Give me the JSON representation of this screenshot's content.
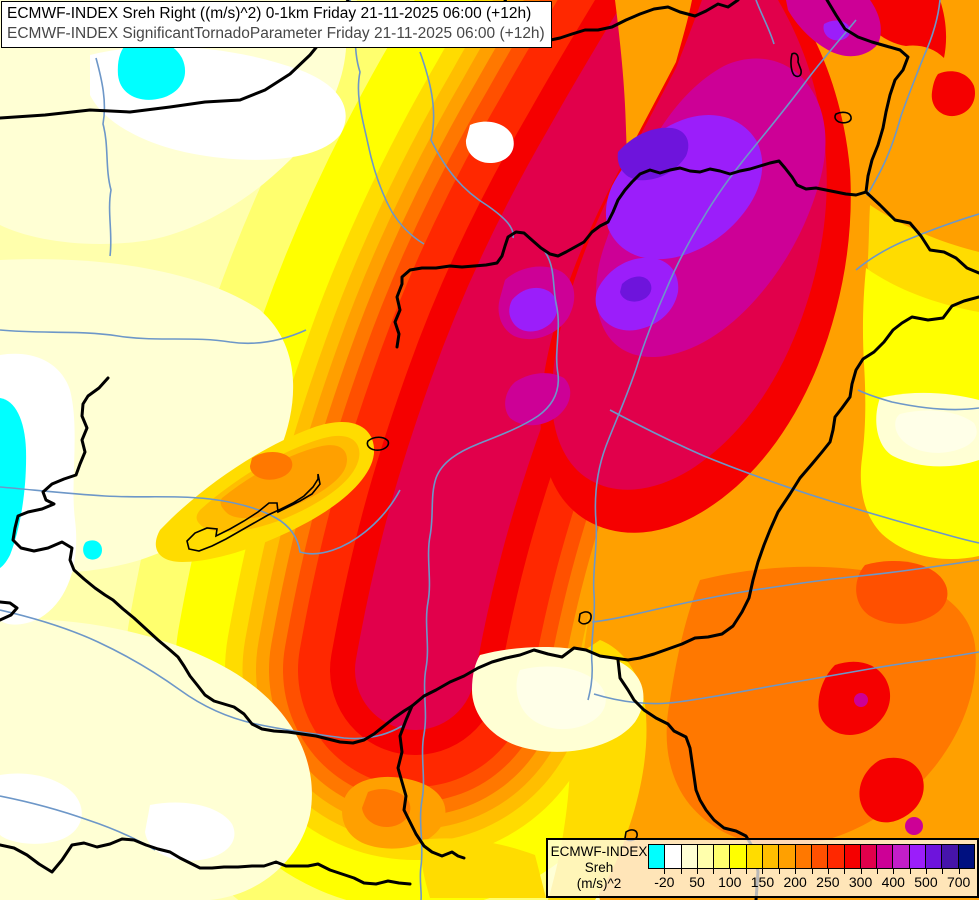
{
  "header": {
    "line1": "ECMWF-INDEX Sreh Right ((m/s)^2) 0-1km Friday 21-11-2025 06:00 (+12h)",
    "line2": "ECMWF-INDEX SignificantTornadoParameter Friday 21-11-2025 06:00 (+12h)"
  },
  "legend": {
    "product": "ECMWF-INDEX",
    "parameter": "Sreh",
    "units": "(m/s)^2",
    "scale_colors": [
      "#00FFFF",
      "#FFFFFF",
      "#FFFFD4",
      "#FFFFAC",
      "#FFFF6E",
      "#FFFF00",
      "#FFDC00",
      "#FFBE00",
      "#FFA000",
      "#FF7800",
      "#FF5000",
      "#FF2800",
      "#F50000",
      "#E1004B",
      "#CD0096",
      "#C31EC8",
      "#9B1EFA",
      "#6E14DC",
      "#4614AA",
      "#001080"
    ],
    "ticks": [
      {
        "label": "-20",
        "boundary": 1
      },
      {
        "label": "50",
        "boundary": 3
      },
      {
        "label": "100",
        "boundary": 5
      },
      {
        "label": "150",
        "boundary": 7
      },
      {
        "label": "200",
        "boundary": 9
      },
      {
        "label": "250",
        "boundary": 11
      },
      {
        "label": "300",
        "boundary": 13
      },
      {
        "label": "400",
        "boundary": 15
      },
      {
        "label": "500",
        "boundary": 17
      },
      {
        "label": "700",
        "boundary": 19
      }
    ]
  },
  "map": {
    "palette": {
      "base": "#FFFFAC",
      "cream": "#FFFFD4",
      "white": "#FFFFFF",
      "near_white": "#FFFFE8",
      "cyan": "#00FFFF",
      "light_yellow": "#FFFF6E",
      "yellow": "#FFFF00",
      "gold": "#FFDC00",
      "amber": "#FFBE00",
      "orange": "#FFA000",
      "deep_orange": "#FF7800",
      "orange_red": "#FF5000",
      "red_orange": "#FF2800",
      "red": "#F50000",
      "crimson": "#E1004B",
      "magenta": "#CD0096",
      "violet": "#9B1EFA",
      "dark_violet": "#6E14DC",
      "border": "#000000",
      "river": "#6D97C8",
      "lake_outline": "#000000"
    }
  }
}
